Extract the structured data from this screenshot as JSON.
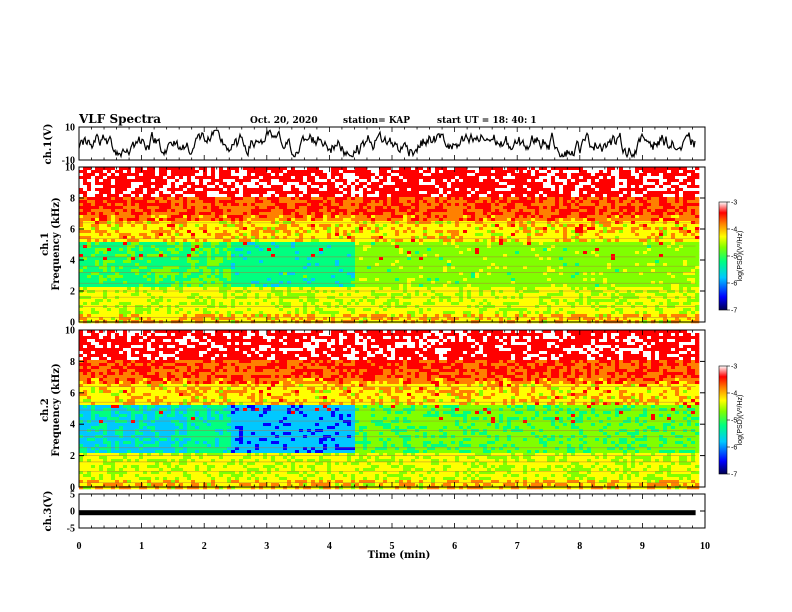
{
  "header": {
    "title": "VLF Spectra",
    "date": "Oct. 20, 2020",
    "station": "station= KAP",
    "start": "start  UT =  18: 40: 1"
  },
  "chart_data": [
    {
      "type": "line",
      "ylabel": "ch.1(V)",
      "ylim": [
        -10,
        10
      ],
      "yticks": [
        "10",
        "-10"
      ],
      "xlim": [
        0,
        10
      ]
    },
    {
      "type": "heatmap",
      "ylabel": "ch.1",
      "ylabel2": "Frequency (kHz)",
      "ylim": [
        0,
        10
      ],
      "yticks": [
        "0",
        "2",
        "4",
        "6",
        "8",
        "10"
      ],
      "xlim": [
        0,
        10
      ],
      "colorbar": {
        "label": "log(PSD)(V²/Hz)",
        "range": [
          -7,
          -3
        ],
        "ticks": [
          "-3",
          "-4",
          "-5",
          "-6",
          "-7"
        ]
      }
    },
    {
      "type": "heatmap",
      "ylabel": "ch.2",
      "ylabel2": "Frequency (kHz)",
      "ylim": [
        0,
        10
      ],
      "yticks": [
        "0",
        "2",
        "4",
        "6",
        "8",
        "10"
      ],
      "xlim": [
        0,
        10
      ],
      "colorbar": {
        "label": "log(PSD)(V²/Hz)",
        "range": [
          -7,
          -3
        ],
        "ticks": [
          "-3",
          "-4",
          "-5",
          "-6",
          "-7"
        ]
      }
    },
    {
      "type": "line",
      "ylabel": "ch.3(V)",
      "ylim": [
        -5,
        5
      ],
      "yticks": [
        "5",
        "0",
        "-5"
      ],
      "value": -0.5,
      "xlim": [
        0,
        10
      ],
      "xticks": [
        "0",
        "1",
        "2",
        "3",
        "4",
        "5",
        "6",
        "7",
        "8",
        "9",
        "10"
      ],
      "xlabel": "Time (min)"
    }
  ],
  "colors": {
    "colormap": [
      "#000060",
      "#0000ff",
      "#00c8ff",
      "#00ff80",
      "#80ff00",
      "#ffff00",
      "#ff8000",
      "#ff0000",
      "#ffffff"
    ]
  }
}
